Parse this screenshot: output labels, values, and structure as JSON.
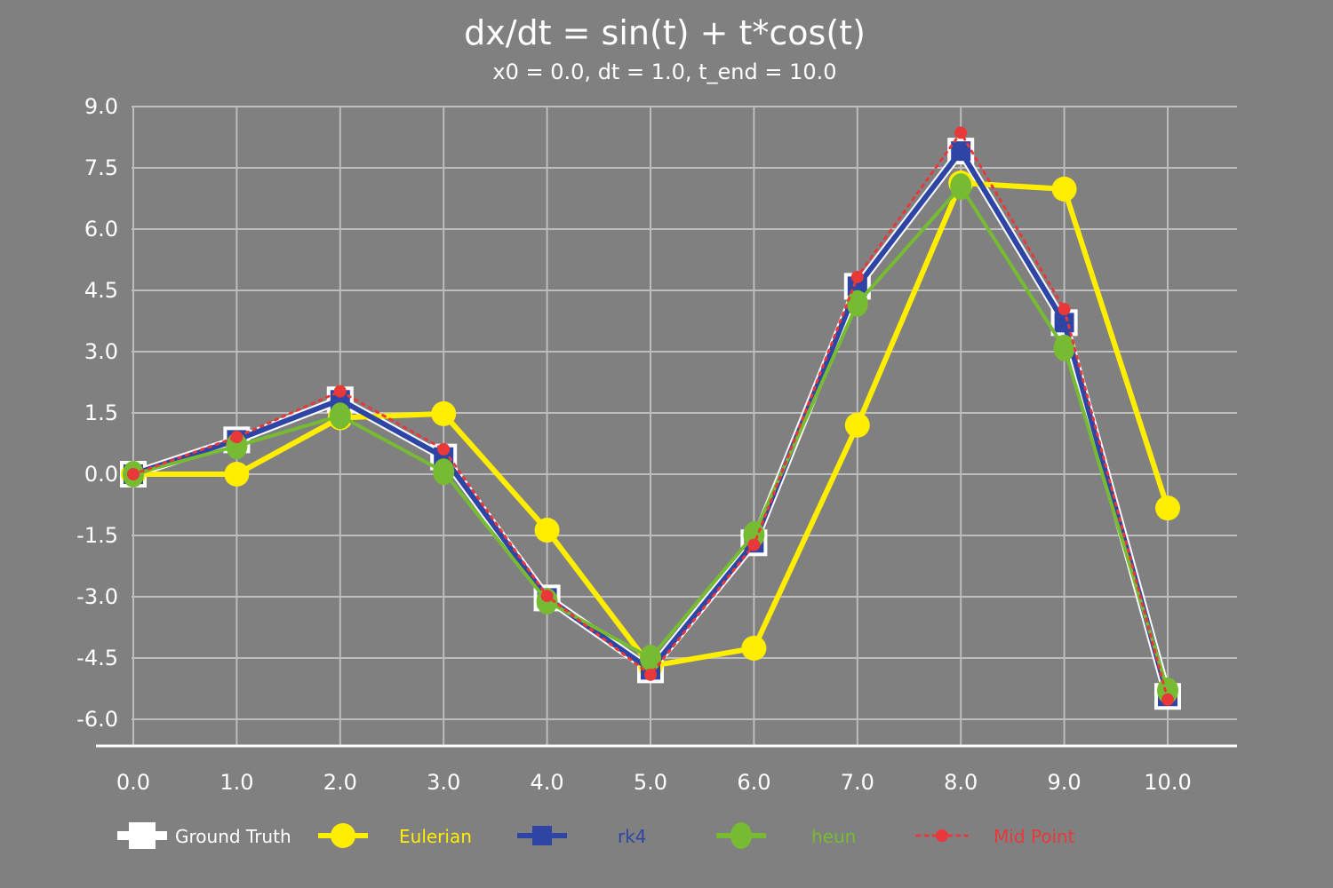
{
  "chart_data": {
    "type": "line",
    "title": "dx/dt = sin(t) + t*cos(t)",
    "subtitle": "x0 = 0.0, dt = 1.0, t_end = 10.0",
    "xlabel": "",
    "ylabel": "",
    "x": [
      0,
      1,
      2,
      3,
      4,
      5,
      6,
      7,
      8,
      9,
      10
    ],
    "x_tick_labels": [
      "0.0",
      "1.0",
      "2.0",
      "3.0",
      "4.0",
      "5.0",
      "6.0",
      "7.0",
      "8.0",
      "9.0",
      "10.0"
    ],
    "y_ticks": [
      9.0,
      7.5,
      6.0,
      4.5,
      3.0,
      1.5,
      0.0,
      -1.5,
      -3.0,
      -4.5,
      -6.0
    ],
    "y_tick_labels": [
      "9.0",
      "7.5",
      "6.0",
      "4.5",
      "3.0",
      "1.5",
      "0.0",
      "-1.5",
      "-3.0",
      "-4.5",
      "-6.0"
    ],
    "ylim": [
      -6.0,
      9.0
    ],
    "xlim": [
      0,
      10
    ],
    "grid": true,
    "legend_position": "bottom",
    "background_color": "#808080",
    "series": [
      {
        "name": "Ground Truth",
        "color": "#ffffff",
        "marker": "square",
        "line_style": "solid",
        "values": [
          0.0,
          0.84,
          1.82,
          0.42,
          -3.03,
          -4.79,
          -1.68,
          4.6,
          7.91,
          3.71,
          -5.44
        ]
      },
      {
        "name": "Eulerian",
        "color": "#ffee00",
        "marker": "circle",
        "line_style": "solid",
        "values": [
          0.0,
          0.0,
          1.38,
          1.48,
          -1.37,
          -4.7,
          -4.26,
          1.2,
          7.13,
          6.98,
          -0.83
        ]
      },
      {
        "name": "rk4",
        "color": "#2e45a6",
        "marker": "square",
        "line_style": "solid",
        "values": [
          0.0,
          0.84,
          1.82,
          0.42,
          -3.03,
          -4.79,
          -1.68,
          4.6,
          7.91,
          3.71,
          -5.44
        ]
      },
      {
        "name": "heun",
        "color": "#77bb33",
        "marker": "ellipse",
        "line_style": "solid",
        "values": [
          0.0,
          0.69,
          1.43,
          0.06,
          -3.11,
          -4.5,
          -1.48,
          4.18,
          7.04,
          3.09,
          -5.3
        ]
      },
      {
        "name": "Mid Point",
        "color": "#e8383a",
        "marker": "circle-small",
        "line_style": "dotted",
        "values": [
          0.0,
          0.91,
          2.03,
          0.61,
          -2.98,
          -4.91,
          -1.73,
          4.83,
          8.36,
          4.04,
          -5.52
        ]
      }
    ]
  }
}
